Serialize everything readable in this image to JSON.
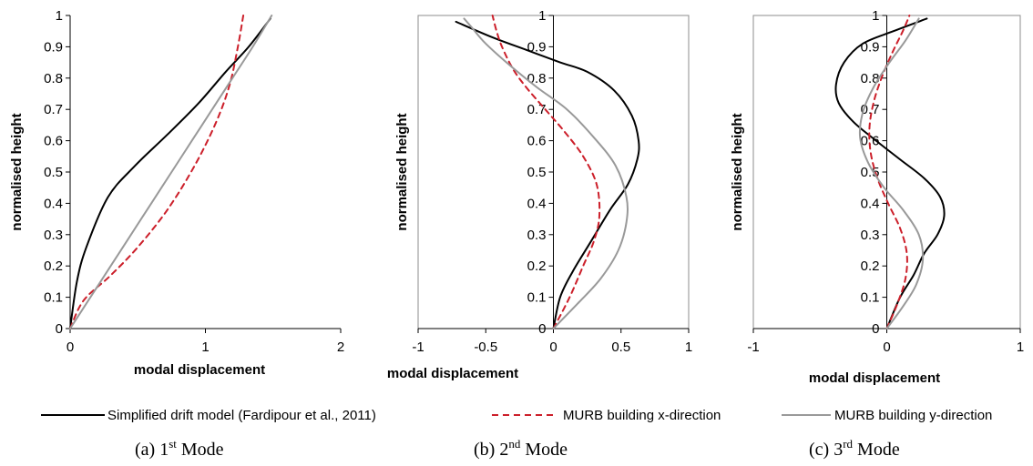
{
  "colors": {
    "series1": "#000000",
    "series2": "#cc1f2a",
    "series3": "#999999",
    "axis": "#000000",
    "frame": "#8c8c8c",
    "grid": "#000000"
  },
  "legend": {
    "items": [
      {
        "label": "Simplified drift model (Fardipour et al., 2011)",
        "style": "solid",
        "color": "#000000"
      },
      {
        "label": "MURB building x-direction",
        "style": "dashed",
        "color": "#cc1f2a"
      },
      {
        "label": "MURB building y-direction",
        "style": "solid",
        "color": "#999999"
      }
    ]
  },
  "chart_data": [
    {
      "type": "line",
      "caption": {
        "prefix": "(a) 1",
        "sup": "st",
        "suffix": " Mode"
      },
      "xlabel": "modal displacement",
      "ylabel": "normalised height",
      "xlim": [
        0,
        2
      ],
      "ylim": [
        0,
        1
      ],
      "x_ticks": [
        "0",
        "1",
        "2"
      ],
      "y_ticks": [
        "0",
        "0.1",
        "0.2",
        "0.3",
        "0.4",
        "0.5",
        "0.6",
        "0.7",
        "0.8",
        "0.9",
        "1"
      ],
      "series": [
        {
          "name": "Simplified drift model (Fardipour et al., 2011)",
          "points": [
            [
              0,
              0
            ],
            [
              0.05,
              0.15
            ],
            [
              0.12,
              0.26
            ],
            [
              0.28,
              0.42
            ],
            [
              0.48,
              0.52
            ],
            [
              0.72,
              0.62
            ],
            [
              0.95,
              0.72
            ],
            [
              1.15,
              0.82
            ],
            [
              1.32,
              0.9
            ],
            [
              1.48,
              0.99
            ]
          ]
        },
        {
          "name": "MURB building x-direction",
          "points": [
            [
              0,
              0
            ],
            [
              0.1,
              0.09
            ],
            [
              0.3,
              0.17
            ],
            [
              0.5,
              0.26
            ],
            [
              0.72,
              0.38
            ],
            [
              0.92,
              0.52
            ],
            [
              1.08,
              0.66
            ],
            [
              1.18,
              0.78
            ],
            [
              1.24,
              0.9
            ],
            [
              1.28,
              1.0
            ]
          ]
        },
        {
          "name": "MURB building y-direction",
          "points": [
            [
              0,
              0
            ],
            [
              0.15,
              0.1
            ],
            [
              0.3,
              0.2
            ],
            [
              0.45,
              0.3
            ],
            [
              0.6,
              0.4
            ],
            [
              0.75,
              0.5
            ],
            [
              0.9,
              0.6
            ],
            [
              1.05,
              0.7
            ],
            [
              1.2,
              0.8
            ],
            [
              1.35,
              0.9
            ],
            [
              1.49,
              1.0
            ]
          ]
        }
      ]
    },
    {
      "type": "line",
      "caption": {
        "prefix": "(b) 2",
        "sup": "nd",
        "suffix": " Mode"
      },
      "xlabel": "modal displacement",
      "ylabel": "normalised height",
      "xlim": [
        -1,
        1
      ],
      "ylim": [
        0,
        1
      ],
      "x_ticks": [
        "-1",
        "-0.5",
        "0",
        "0.5",
        "1"
      ],
      "y_ticks": [
        "0",
        "0.1",
        "0.2",
        "0.3",
        "0.4",
        "0.5",
        "0.6",
        "0.7",
        "0.8",
        "0.9",
        "1"
      ],
      "series": [
        {
          "name": "Simplified drift model (Fardipour et al., 2011)",
          "points": [
            [
              0,
              0
            ],
            [
              0.05,
              0.1
            ],
            [
              0.14,
              0.18
            ],
            [
              0.28,
              0.28
            ],
            [
              0.42,
              0.38
            ],
            [
              0.55,
              0.46
            ],
            [
              0.62,
              0.54
            ],
            [
              0.63,
              0.6
            ],
            [
              0.58,
              0.68
            ],
            [
              0.45,
              0.76
            ],
            [
              0.25,
              0.82
            ],
            [
              0.05,
              0.85
            ],
            [
              -0.2,
              0.89
            ],
            [
              -0.45,
              0.93
            ],
            [
              -0.72,
              0.98
            ]
          ]
        },
        {
          "name": "MURB building x-direction",
          "points": [
            [
              0,
              0
            ],
            [
              0.12,
              0.1
            ],
            [
              0.22,
              0.2
            ],
            [
              0.3,
              0.28
            ],
            [
              0.34,
              0.36
            ],
            [
              0.32,
              0.46
            ],
            [
              0.22,
              0.55
            ],
            [
              0.08,
              0.63
            ],
            [
              -0.06,
              0.7
            ],
            [
              -0.2,
              0.77
            ],
            [
              -0.3,
              0.83
            ],
            [
              -0.38,
              0.9
            ],
            [
              -0.42,
              0.95
            ],
            [
              -0.45,
              1.0
            ]
          ]
        },
        {
          "name": "MURB building y-direction",
          "points": [
            [
              0,
              0
            ],
            [
              0.18,
              0.08
            ],
            [
              0.35,
              0.16
            ],
            [
              0.48,
              0.25
            ],
            [
              0.54,
              0.34
            ],
            [
              0.54,
              0.42
            ],
            [
              0.46,
              0.52
            ],
            [
              0.3,
              0.61
            ],
            [
              0.1,
              0.7
            ],
            [
              -0.12,
              0.77
            ],
            [
              -0.32,
              0.84
            ],
            [
              -0.5,
              0.91
            ],
            [
              -0.6,
              0.96
            ],
            [
              -0.66,
              0.99
            ]
          ]
        }
      ]
    },
    {
      "type": "line",
      "caption": {
        "prefix": "(c) 3",
        "sup": "rd",
        "suffix": " Mode"
      },
      "xlabel": "modal displacement",
      "ylabel": "normalised height",
      "xlim": [
        -1,
        1
      ],
      "ylim": [
        0,
        1
      ],
      "x_ticks": [
        "-1",
        "0",
        "1"
      ],
      "y_ticks": [
        "0",
        "0.1",
        "0.2",
        "0.3",
        "0.4",
        "0.5",
        "0.6",
        "0.7",
        "0.8",
        "0.9",
        "1"
      ],
      "series": [
        {
          "name": "Simplified drift model (Fardipour et al., 2011)",
          "points": [
            [
              0,
              0
            ],
            [
              0.1,
              0.1
            ],
            [
              0.2,
              0.17
            ],
            [
              0.28,
              0.24
            ],
            [
              0.38,
              0.3
            ],
            [
              0.43,
              0.36
            ],
            [
              0.4,
              0.42
            ],
            [
              0.28,
              0.48
            ],
            [
              0.1,
              0.54
            ],
            [
              -0.08,
              0.6
            ],
            [
              -0.25,
              0.66
            ],
            [
              -0.36,
              0.72
            ],
            [
              -0.38,
              0.78
            ],
            [
              -0.32,
              0.85
            ],
            [
              -0.18,
              0.91
            ],
            [
              0.05,
              0.95
            ],
            [
              0.3,
              0.99
            ]
          ]
        },
        {
          "name": "MURB building x-direction",
          "points": [
            [
              0,
              0
            ],
            [
              0.08,
              0.08
            ],
            [
              0.14,
              0.16
            ],
            [
              0.15,
              0.24
            ],
            [
              0.1,
              0.32
            ],
            [
              0.01,
              0.4
            ],
            [
              -0.07,
              0.48
            ],
            [
              -0.12,
              0.56
            ],
            [
              -0.13,
              0.64
            ],
            [
              -0.1,
              0.72
            ],
            [
              -0.04,
              0.8
            ],
            [
              0.04,
              0.88
            ],
            [
              0.12,
              0.95
            ],
            [
              0.17,
              1.0
            ]
          ]
        },
        {
          "name": "MURB building y-direction",
          "points": [
            [
              0,
              0
            ],
            [
              0.12,
              0.07
            ],
            [
              0.22,
              0.14
            ],
            [
              0.27,
              0.22
            ],
            [
              0.24,
              0.3
            ],
            [
              0.12,
              0.38
            ],
            [
              -0.02,
              0.45
            ],
            [
              -0.14,
              0.53
            ],
            [
              -0.2,
              0.61
            ],
            [
              -0.18,
              0.69
            ],
            [
              -0.1,
              0.77
            ],
            [
              0.02,
              0.85
            ],
            [
              0.14,
              0.92
            ],
            [
              0.24,
              0.99
            ]
          ]
        }
      ]
    }
  ]
}
